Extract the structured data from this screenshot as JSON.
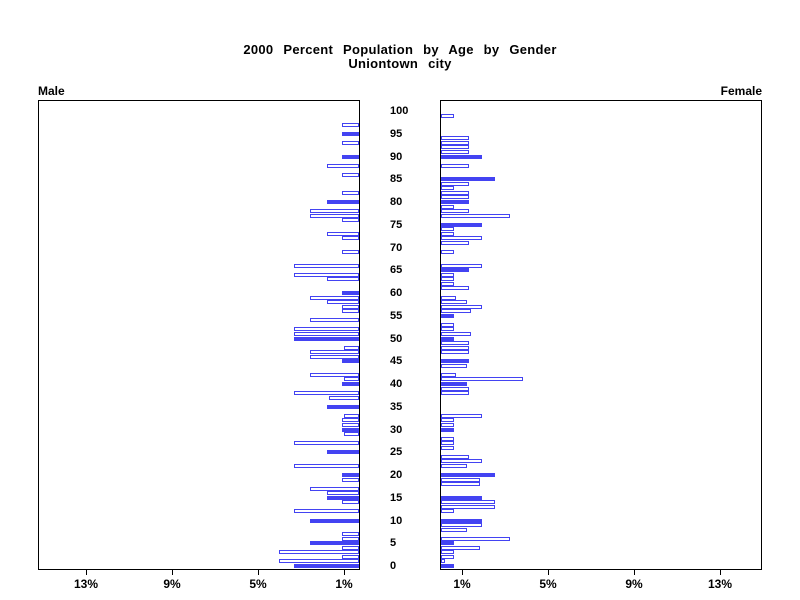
{
  "chart_data": {
    "type": "bar",
    "subtype": "population-pyramid",
    "title": "2000 Percent Population by Age by Gender",
    "subtitle": "Uniontown city",
    "left_series_label": "Male",
    "right_series_label": "Female",
    "age_axis_ticks": [
      100,
      95,
      90,
      85,
      80,
      75,
      70,
      65,
      60,
      55,
      50,
      45,
      40,
      35,
      30,
      25,
      20,
      15,
      10,
      5,
      0
    ],
    "x_axis_ticks_left": [
      "13%",
      "9%",
      "5%",
      "1%"
    ],
    "x_axis_ticks_right": [
      "1%",
      "5%",
      "9%",
      "13%"
    ],
    "x_axis_unit": "percent of population",
    "x_axis_max": 15,
    "highlight_every_years": 5,
    "legend_position": "none",
    "grid": false,
    "series": [
      {
        "name": "Male",
        "side": "left",
        "ages": "0-100 by single year, index = age",
        "values_by_age": [
          3.0,
          3.7,
          0.8,
          3.7,
          0.8,
          2.3,
          0.8,
          0.8,
          0,
          0,
          2.3,
          0,
          3.0,
          0,
          0.8,
          1.5,
          1.5,
          2.3,
          0,
          0.8,
          0.8,
          0,
          3.0,
          0,
          0,
          1.5,
          0,
          3.0,
          0,
          0.7,
          0.8,
          0.8,
          0.8,
          0.7,
          0,
          1.5,
          0,
          1.4,
          3.0,
          0,
          0.8,
          0.7,
          2.3,
          0,
          0,
          0.8,
          2.3,
          2.3,
          0.7,
          0,
          3.0,
          3.0,
          3.0,
          0,
          2.3,
          0,
          0.8,
          0.8,
          1.5,
          2.3,
          0.8,
          0,
          0,
          1.5,
          3.0,
          0,
          3.0,
          0,
          0,
          0.8,
          0,
          0,
          0.8,
          1.5,
          0,
          0,
          0.8,
          2.3,
          2.3,
          0,
          1.5,
          0,
          0.8,
          0,
          0,
          0,
          0.8,
          0,
          1.5,
          0,
          0.8,
          0,
          0,
          0.8,
          0,
          0.8,
          0,
          0.8,
          0,
          0,
          0
        ]
      },
      {
        "name": "Female",
        "side": "right",
        "ages": "0-100 by single year, index = age",
        "values_by_age": [
          0.6,
          0.2,
          0.6,
          0.6,
          1.8,
          0.6,
          3.2,
          0,
          1.2,
          1.9,
          1.9,
          0,
          0.6,
          2.5,
          2.5,
          1.9,
          0,
          0,
          1.8,
          1.8,
          2.5,
          0,
          1.2,
          1.9,
          1.3,
          0,
          0.6,
          0.6,
          0.6,
          0,
          0.6,
          0.6,
          0.6,
          1.9,
          0,
          0,
          0,
          0,
          1.3,
          1.3,
          1.2,
          3.8,
          0.7,
          0,
          1.2,
          1.3,
          0,
          1.3,
          1.3,
          1.3,
          0.6,
          1.4,
          0.6,
          0.6,
          0,
          0.6,
          1.4,
          1.9,
          1.2,
          0.7,
          0,
          1.3,
          0.6,
          0.6,
          0.6,
          1.3,
          1.9,
          0,
          0,
          0.6,
          0,
          1.3,
          1.9,
          0.6,
          0.6,
          1.9,
          0,
          3.2,
          1.3,
          0.6,
          1.3,
          1.3,
          1.3,
          0.6,
          1.3,
          2.5,
          0,
          0,
          1.3,
          0,
          1.9,
          1.3,
          1.3,
          1.3,
          1.3,
          0,
          0,
          0,
          0,
          0.6,
          0
        ]
      }
    ],
    "colors": {
      "highlight_bar_fill": "#4343f2",
      "bar_outline": "#4343f2",
      "bar_fill": "#ffffff",
      "axis": "#000000",
      "text": "#000000",
      "background": "#ffffff"
    }
  }
}
